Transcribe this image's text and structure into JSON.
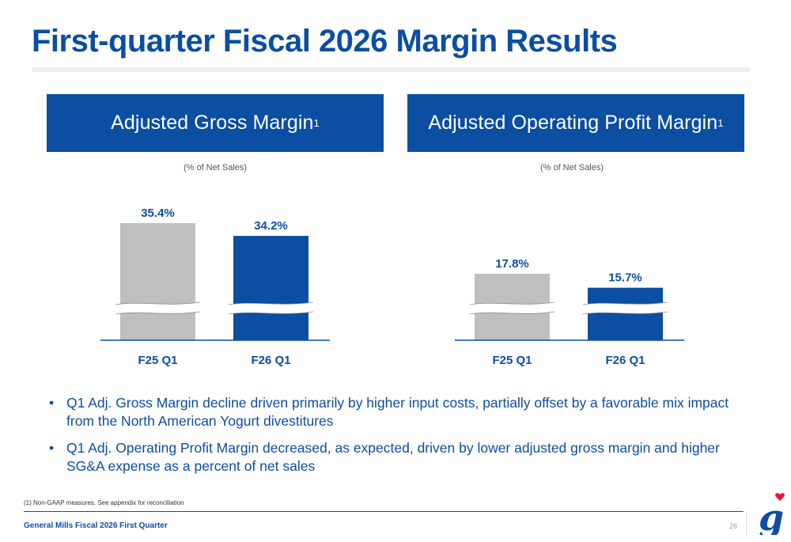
{
  "title": "First-quarter Fiscal 2026 Margin Results",
  "panels": [
    {
      "header": "Adjusted Gross Margin",
      "header_sup": "1",
      "subtitle": "(% of Net Sales)"
    },
    {
      "header": "Adjusted Operating Profit Margin",
      "header_sup": "1",
      "subtitle": "(% of Net Sales)"
    }
  ],
  "chart_data": [
    {
      "type": "bar",
      "title": "Adjusted Gross Margin",
      "subtitle": "(% of Net Sales)",
      "categories": [
        "F25 Q1",
        "F26 Q1"
      ],
      "values": [
        35.4,
        34.2
      ],
      "labels": [
        "35.4%",
        "34.2%"
      ],
      "unit": "%",
      "axis_break": true,
      "colors": [
        "#bfbfbf",
        "#0b4ea2"
      ]
    },
    {
      "type": "bar",
      "title": "Adjusted Operating Profit Margin",
      "subtitle": "(% of Net Sales)",
      "categories": [
        "F25 Q1",
        "F26 Q1"
      ],
      "values": [
        17.8,
        15.7
      ],
      "labels": [
        "17.8%",
        "15.7%"
      ],
      "unit": "%",
      "axis_break": true,
      "colors": [
        "#bfbfbf",
        "#0b4ea2"
      ]
    }
  ],
  "bullets": [
    "Q1 Adj. Gross Margin decline driven primarily by higher input costs, partially offset by a favorable mix impact from the North American Yogurt divestitures",
    "Q1 Adj. Operating Profit Margin decreased, as expected, driven by lower adjusted gross margin and higher SG&A expense as a percent of net sales"
  ],
  "bullet_symbol": "•",
  "footnote": "(1) Non-GAAP measures. See appendix for reconciliation",
  "footer": {
    "text": "General Mills Fiscal 2026 First Quarter",
    "page": "26"
  },
  "logo": {
    "icon": "general-mills-g-logo-icon"
  },
  "colors": {
    "brand_blue": "#0b4ea2",
    "prior_gray": "#bfbfbf",
    "heart_red": "#e31837"
  }
}
